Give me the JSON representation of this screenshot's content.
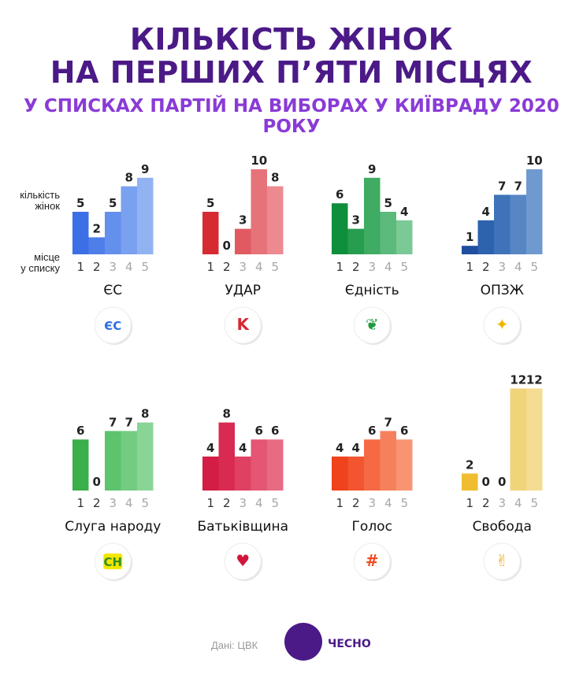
{
  "title_line1": "КІЛЬКІСТЬ ЖІНОК",
  "title_line2": "НА ПЕРШИХ П’ЯТИ МІСЦЯХ",
  "subtitle": "У СПИСКАХ ПАРТІЙ НА ВИБОРАХ У КИЇВРАДУ 2020 РОКУ",
  "legend_count": [
    "кількість",
    "жінок"
  ],
  "legend_place": [
    "місце",
    "у списку"
  ],
  "source": "Дані: ЦВК",
  "brand": "ЧЕСНО",
  "chart_data": {
    "type": "bar",
    "categories": [
      "1",
      "2",
      "3",
      "4",
      "5"
    ],
    "ylim": [
      0,
      12
    ],
    "series": [
      {
        "name": "ЄС",
        "values": [
          5,
          2,
          5,
          8,
          9
        ],
        "colors": [
          "#3c6ee6",
          "#4f7ee9",
          "#6390ec",
          "#7aa1ef",
          "#92b3f2"
        ],
        "logo_text": "ЄС",
        "logo_color": "#2f6fe0"
      },
      {
        "name": "УДАР",
        "values": [
          5,
          0,
          3,
          10,
          8
        ],
        "colors": [
          "#d62a33",
          "#dc3e46",
          "#e15a61",
          "#e7737a",
          "#ec8a90"
        ],
        "logo_text": "K",
        "logo_color": "#d62a33"
      },
      {
        "name": "Єдність",
        "values": [
          6,
          3,
          9,
          5,
          4
        ],
        "colors": [
          "#0f8f3b",
          "#279d4f",
          "#3fab63",
          "#5cba7c",
          "#7bc995"
        ],
        "logo_text": "❦",
        "logo_color": "#1f9a3f"
      },
      {
        "name": "ОПЗЖ",
        "values": [
          1,
          4,
          7,
          7,
          10
        ],
        "colors": [
          "#1f4f9e",
          "#2c62ae",
          "#3e73b9",
          "#5686c4",
          "#6f9acf"
        ],
        "logo_text": "✦",
        "logo_color": "#f0b400"
      },
      {
        "name": "Слуга народу",
        "values": [
          6,
          0,
          7,
          7,
          8
        ],
        "colors": [
          "#3aaf4c",
          "#4bb95b",
          "#5ec36d",
          "#73cc81",
          "#89d596"
        ],
        "logo_text": "СН",
        "logo_color": "#2e8f2a"
      },
      {
        "name": "Батьківщина",
        "values": [
          4,
          8,
          4,
          6,
          6
        ],
        "colors": [
          "#d31d44",
          "#d92b52",
          "#df4163",
          "#e45673",
          "#e86b84"
        ],
        "logo_text": "♥",
        "logo_color": "#d3143c"
      },
      {
        "name": "Голос",
        "values": [
          4,
          4,
          6,
          7,
          6
        ],
        "colors": [
          "#f0421c",
          "#f2552f",
          "#f56a45",
          "#f7805c",
          "#f99473"
        ],
        "logo_text": "#",
        "logo_color": "#f04a1e"
      },
      {
        "name": "Свобода",
        "values": [
          2,
          0,
          0,
          12,
          12
        ],
        "colors": [
          "#efbd2f",
          "#f1c541",
          "#f3ce5a",
          "#f1d37a",
          "#f4dc92"
        ],
        "logo_text": "✌",
        "logo_color": "#e8b32a"
      }
    ]
  }
}
